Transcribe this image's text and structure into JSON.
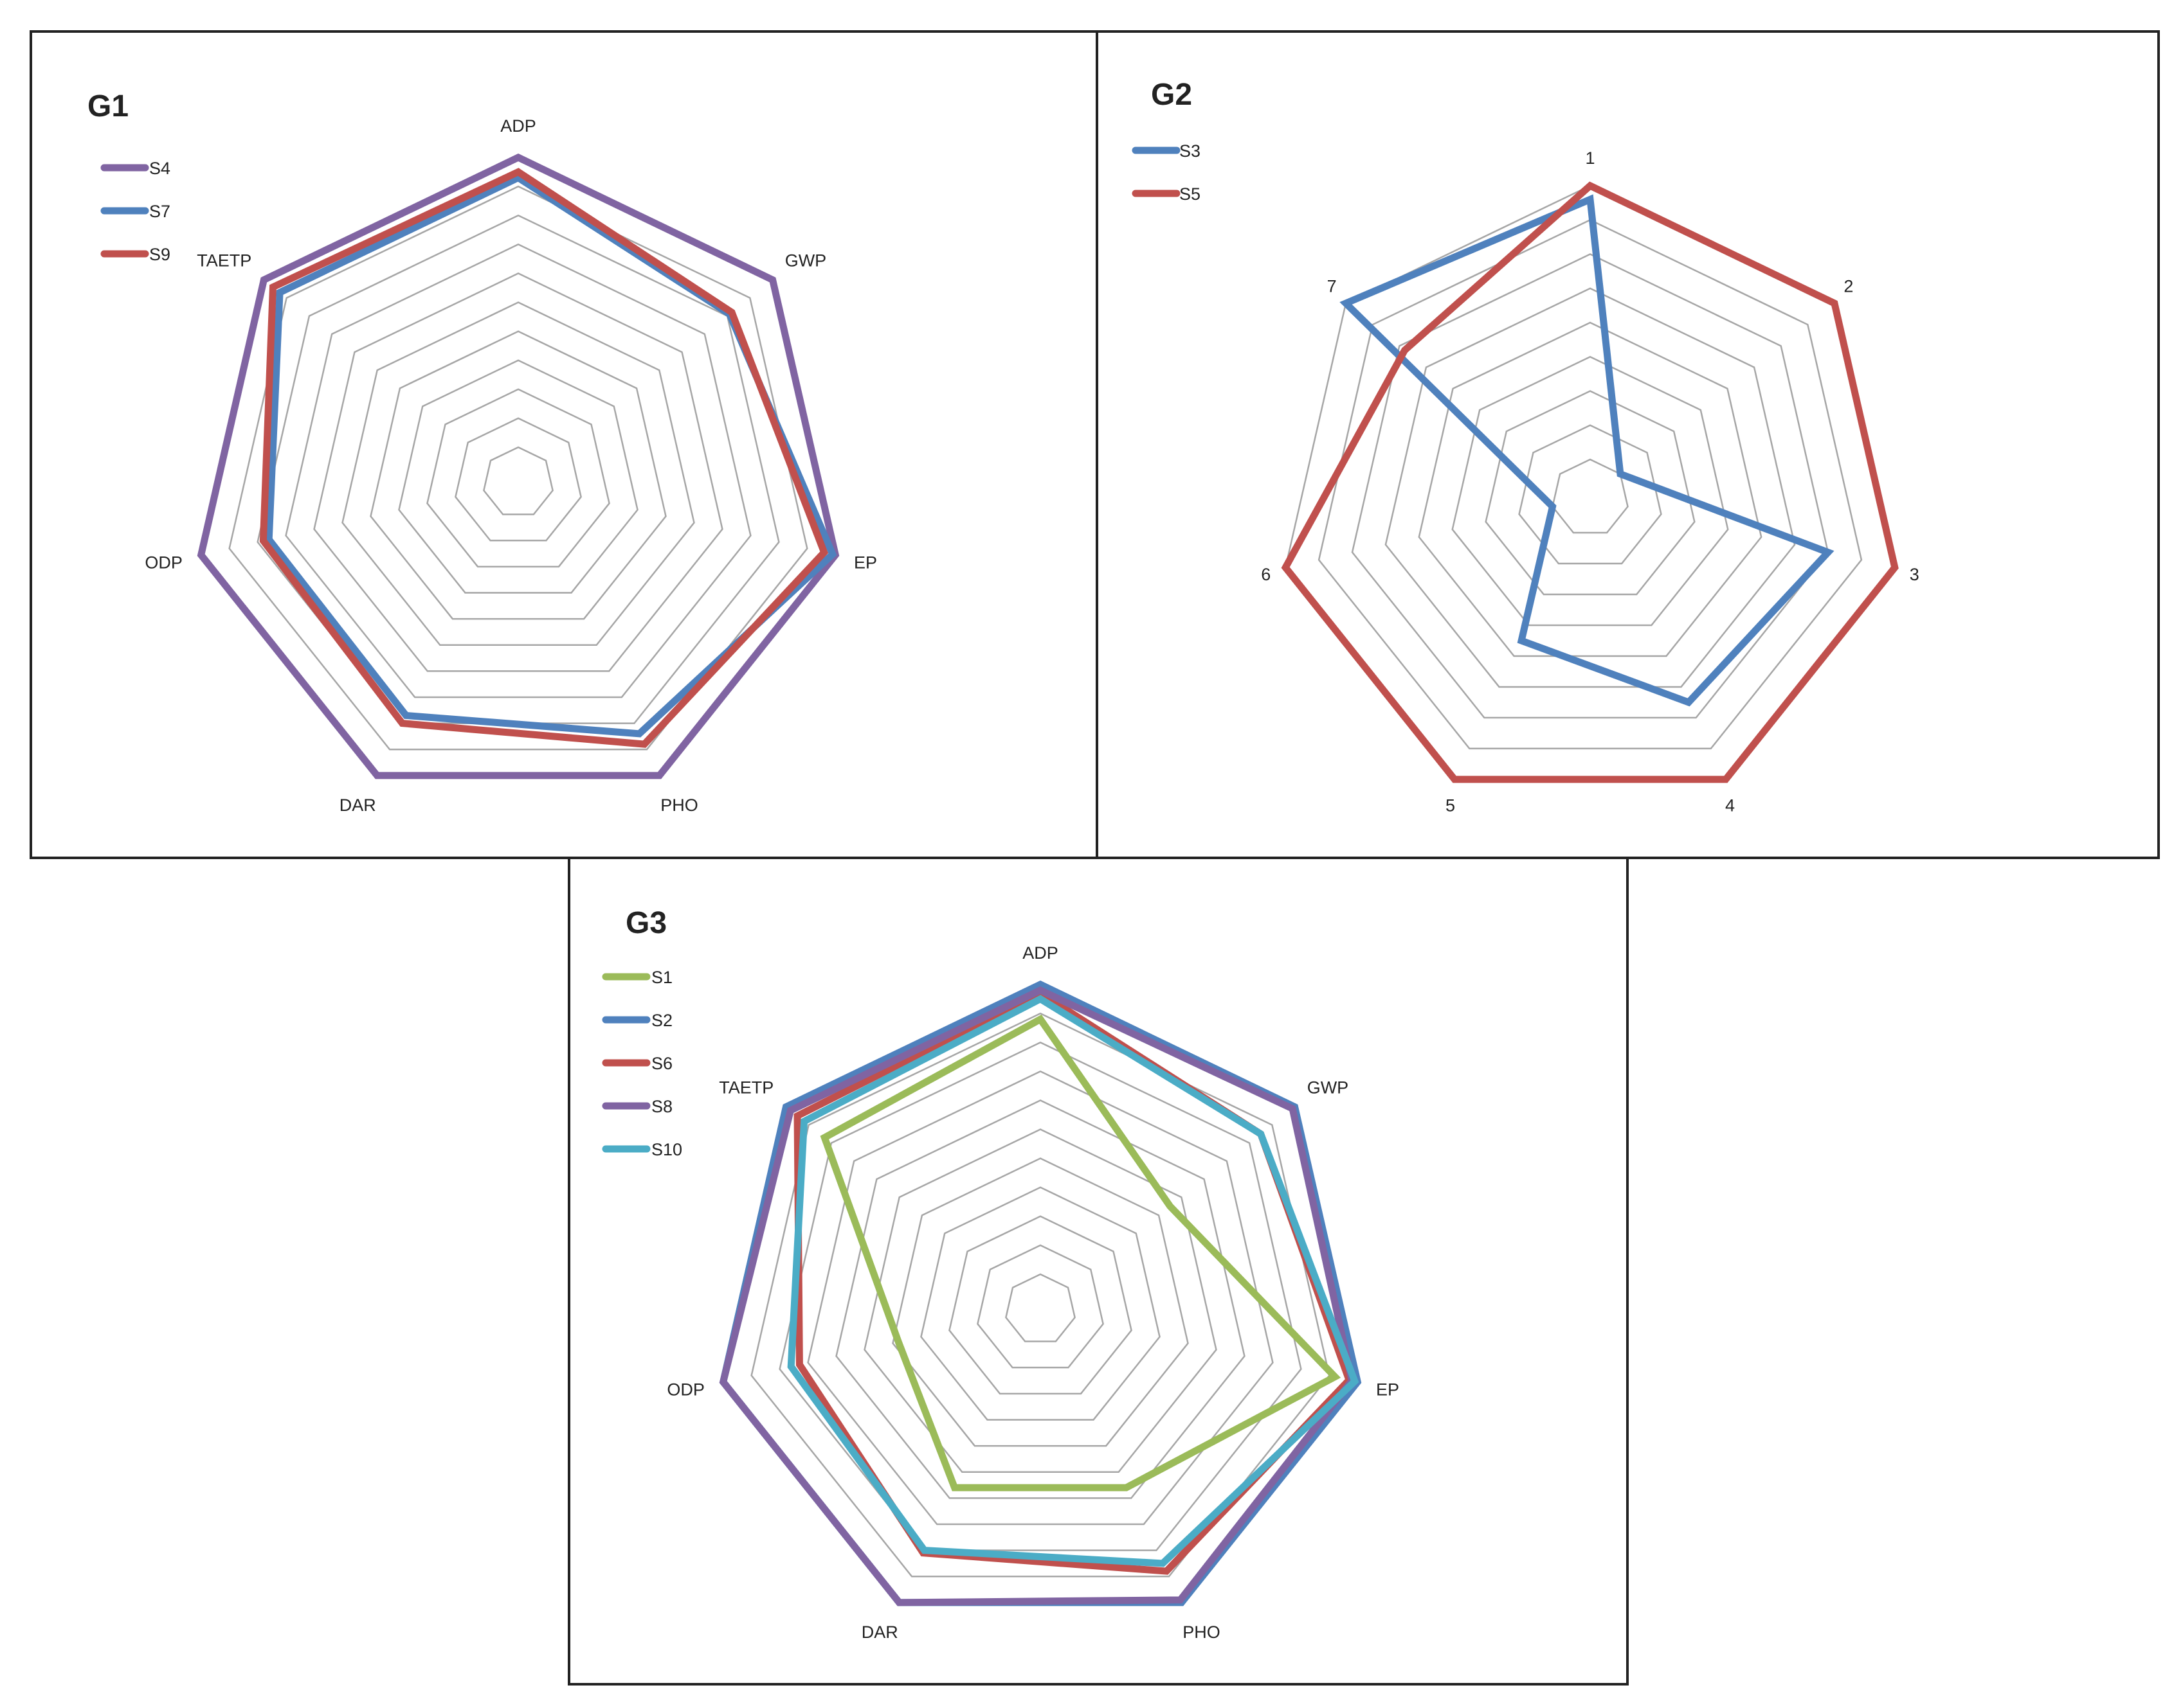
{
  "chart_data": [
    {
      "type": "radar",
      "title": "G1",
      "axes": [
        "ADP",
        "GWP",
        "EP",
        "PHO",
        "DAR",
        "ODP",
        "TAETP"
      ],
      "rmax": 10,
      "rings": 10,
      "series": [
        {
          "name": "S4",
          "color": "#8064a2",
          "values": [
            10,
            10,
            10,
            10,
            10,
            10,
            10
          ]
        },
        {
          "name": "S7",
          "color": "#4f81bd",
          "values": [
            9.3,
            8.1,
            9.9,
            8.4,
            7.7,
            7.6,
            9.3
          ]
        },
        {
          "name": "S9",
          "color": "#c0504d",
          "values": [
            9.5,
            8.2,
            9.6,
            8.8,
            8.0,
            7.8,
            9.6
          ]
        }
      ]
    },
    {
      "type": "radar",
      "title": "G2",
      "axes": [
        "1",
        "2",
        "3",
        "4",
        "5",
        "6",
        "7"
      ],
      "rmax": 8,
      "rings": 8,
      "series": [
        {
          "name": "S3",
          "color": "#4f81bd",
          "values": [
            7.6,
            0,
            6.0,
            5.5,
            3.5,
            0,
            8
          ]
        },
        {
          "name": "S5",
          "color": "#c0504d",
          "values": [
            8,
            8,
            8,
            8,
            8,
            8,
            5.8
          ]
        }
      ]
    },
    {
      "type": "radar",
      "title": "G3",
      "axes": [
        "ADP",
        "GWP",
        "EP",
        "PHO",
        "DAR",
        "ODP",
        "TAETP"
      ],
      "rmax": 10,
      "rings": 10,
      "series": [
        {
          "name": "S1",
          "color": "#9bbb59",
          "values": [
            8.8,
            4.5,
            9.2,
            5.6,
            5.6,
            3.8,
            8.3
          ]
        },
        {
          "name": "S2",
          "color": "#4f81bd",
          "values": [
            10,
            10,
            10,
            10,
            10,
            10,
            10
          ]
        },
        {
          "name": "S6",
          "color": "#c0504d",
          "values": [
            9.7,
            8.5,
            9.7,
            8.8,
            8.1,
            7.3,
            9.5
          ]
        },
        {
          "name": "S8",
          "color": "#8064a2",
          "values": [
            9.8,
            9.9,
            9.8,
            9.9,
            10,
            10,
            9.8
          ]
        },
        {
          "name": "S10",
          "color": "#4bacc6",
          "values": [
            9.5,
            8.5,
            9.9,
            8.5,
            8.0,
            7.6,
            9.2
          ]
        }
      ]
    }
  ]
}
